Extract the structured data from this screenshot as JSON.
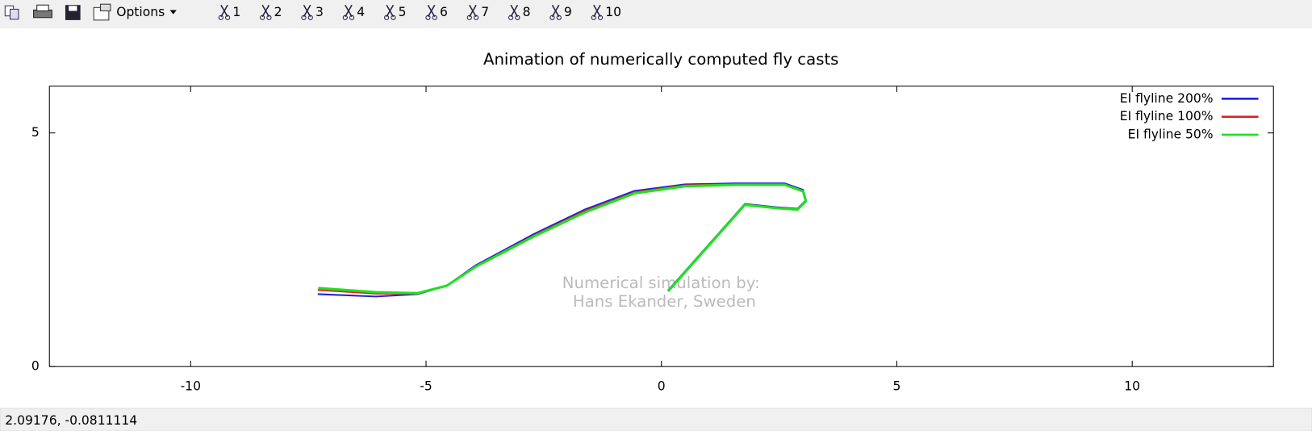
{
  "toolbar": {
    "options": "Options",
    "buttons": [
      "1",
      "2",
      "3",
      "4",
      "5",
      "6",
      "7",
      "8",
      "9",
      "10"
    ]
  },
  "chart_data": {
    "type": "line",
    "title": "Animation of numerically computed fly casts",
    "annotations": [
      "Numerical simulation by:",
      "Hans Ekander, Sweden"
    ],
    "xlim": [
      -13,
      13
    ],
    "ylim": [
      0,
      6
    ],
    "xticks": [
      -10,
      -5,
      0,
      5,
      10
    ],
    "yticks": [
      0,
      5
    ],
    "grid": false,
    "legend_position": "top-right",
    "series": [
      {
        "name": "EI flyline 200%",
        "color": "#2020e0",
        "x": [
          -7.3,
          -6.06,
          -5.18,
          -4.56,
          -3.94,
          -2.7,
          -1.63,
          -0.57,
          0.5,
          1.56,
          2.62,
          3.01,
          3.07,
          2.89,
          2.45,
          1.77,
          0.14
        ],
        "values": [
          1.55,
          1.5,
          1.55,
          1.73,
          2.17,
          2.84,
          3.36,
          3.76,
          3.9,
          3.92,
          3.92,
          3.78,
          3.56,
          3.38,
          3.41,
          3.48,
          1.63
        ]
      },
      {
        "name": "EI flyline 100%",
        "color": "#e02020",
        "x": [
          -7.3,
          -6.06,
          -5.18,
          -4.56,
          -3.94,
          -2.7,
          -1.63,
          -0.57,
          0.5,
          1.56,
          2.62,
          3.01,
          3.07,
          2.89,
          2.45,
          1.77,
          0.14
        ],
        "values": [
          1.64,
          1.56,
          1.56,
          1.73,
          2.15,
          2.81,
          3.33,
          3.73,
          3.88,
          3.9,
          3.9,
          3.76,
          3.55,
          3.37,
          3.4,
          3.47,
          1.62
        ]
      },
      {
        "name": "EI flyline 50%",
        "color": "#20e020",
        "x": [
          -7.29,
          -6.06,
          -5.18,
          -4.56,
          -3.94,
          -2.7,
          -1.63,
          -0.57,
          0.5,
          1.56,
          2.62,
          3.01,
          3.07,
          2.89,
          2.45,
          1.77,
          0.14
        ],
        "values": [
          1.68,
          1.59,
          1.57,
          1.73,
          2.14,
          2.79,
          3.3,
          3.71,
          3.86,
          3.89,
          3.89,
          3.75,
          3.54,
          3.36,
          3.39,
          3.46,
          1.61
        ]
      }
    ]
  },
  "status_bar": {
    "coordinates": "2.09176, -0.0811114"
  }
}
